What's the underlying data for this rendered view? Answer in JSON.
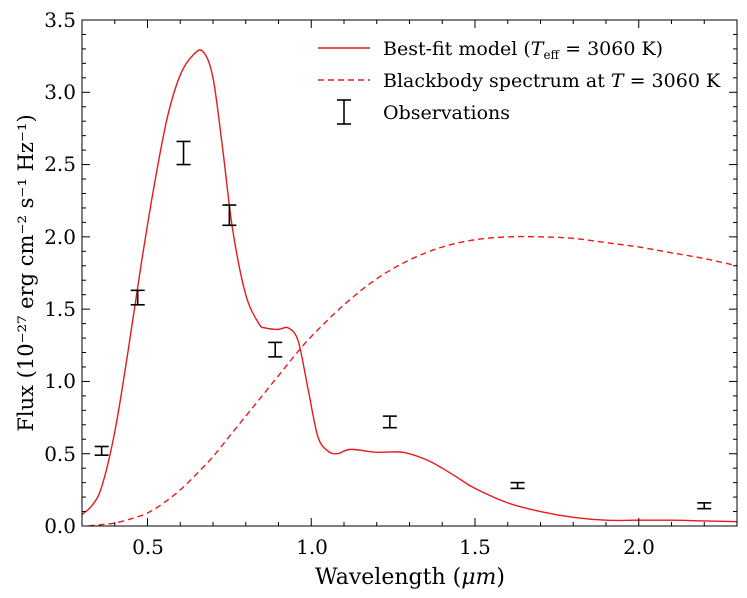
{
  "chart_data": {
    "type": "line",
    "xlabel_prefix": "Wavelength (",
    "xlabel_unit": "μm",
    "xlabel_suffix": ")",
    "ylabel": "Flux (10⁻²⁷ erg cm⁻² s⁻¹ Hz⁻¹)",
    "xlim": [
      0.3,
      2.3
    ],
    "ylim": [
      0.0,
      3.5
    ],
    "xticks": [
      0.5,
      1.0,
      1.5,
      2.0
    ],
    "xtick_labels": [
      "0.5",
      "1.0",
      "1.5",
      "2.0"
    ],
    "yticks": [
      0.0,
      0.5,
      1.0,
      1.5,
      2.0,
      2.5,
      3.0,
      3.5
    ],
    "ytick_labels": [
      "0.0",
      "0.5",
      "1.0",
      "1.5",
      "2.0",
      "2.5",
      "3.0",
      "3.5"
    ],
    "legend_position": "top-right",
    "legend": {
      "model": "Best-fit model (T_eff = 3060 K)",
      "model_parts": {
        "prefix": "Best-fit model (",
        "T": "T",
        "sub": "eff",
        "suffix": " = 3060 K)"
      },
      "blackbody": "Blackbody spectrum at T = 3060 K",
      "blackbody_parts": {
        "prefix": "Blackbody spectrum at ",
        "T": "T",
        "suffix": " = 3060 K"
      },
      "observations": "Observations"
    },
    "series": [
      {
        "name": "Best-fit model (T_eff = 3060 K)",
        "style": "solid",
        "color": "#e8191b",
        "x": [
          0.3,
          0.33,
          0.36,
          0.4,
          0.44,
          0.48,
          0.52,
          0.56,
          0.6,
          0.64,
          0.67,
          0.7,
          0.73,
          0.76,
          0.8,
          0.84,
          0.86,
          0.9,
          0.93,
          0.96,
          0.99,
          1.02,
          1.05,
          1.08,
          1.12,
          1.2,
          1.28,
          1.35,
          1.4,
          1.45,
          1.5,
          1.6,
          1.7,
          1.8,
          1.9,
          2.0,
          2.1,
          2.2,
          2.3
        ],
        "y": [
          0.08,
          0.14,
          0.27,
          0.65,
          1.2,
          1.8,
          2.35,
          2.82,
          3.12,
          3.26,
          3.28,
          3.1,
          2.6,
          2.05,
          1.6,
          1.4,
          1.37,
          1.36,
          1.37,
          1.28,
          0.95,
          0.62,
          0.52,
          0.5,
          0.53,
          0.51,
          0.51,
          0.46,
          0.4,
          0.33,
          0.26,
          0.16,
          0.1,
          0.06,
          0.04,
          0.04,
          0.04,
          0.035,
          0.03
        ]
      },
      {
        "name": "Blackbody spectrum at T = 3060 K",
        "style": "dashed",
        "color": "#e8191b",
        "x": [
          0.32,
          0.36,
          0.4,
          0.45,
          0.5,
          0.55,
          0.6,
          0.65,
          0.7,
          0.75,
          0.8,
          0.85,
          0.9,
          0.95,
          1.0,
          1.1,
          1.2,
          1.3,
          1.4,
          1.5,
          1.6,
          1.7,
          1.8,
          1.9,
          2.0,
          2.1,
          2.2,
          2.3
        ],
        "y": [
          0.0,
          0.01,
          0.02,
          0.05,
          0.09,
          0.16,
          0.25,
          0.36,
          0.48,
          0.62,
          0.76,
          0.9,
          1.04,
          1.18,
          1.31,
          1.53,
          1.71,
          1.84,
          1.93,
          1.98,
          2.0,
          2.0,
          1.99,
          1.96,
          1.93,
          1.89,
          1.85,
          1.8
        ]
      }
    ],
    "observations": [
      {
        "x": 0.36,
        "y": 0.52,
        "err": 0.03
      },
      {
        "x": 0.47,
        "y": 1.58,
        "err": 0.05
      },
      {
        "x": 0.61,
        "y": 2.58,
        "err": 0.08
      },
      {
        "x": 0.75,
        "y": 2.15,
        "err": 0.07
      },
      {
        "x": 0.89,
        "y": 1.22,
        "err": 0.05
      },
      {
        "x": 1.24,
        "y": 0.72,
        "err": 0.04
      },
      {
        "x": 1.63,
        "y": 0.28,
        "err": 0.02
      },
      {
        "x": 2.2,
        "y": 0.14,
        "err": 0.02
      }
    ],
    "colors": {
      "model": "#e8191b",
      "observations": "#000000",
      "axes": "#000000"
    }
  }
}
